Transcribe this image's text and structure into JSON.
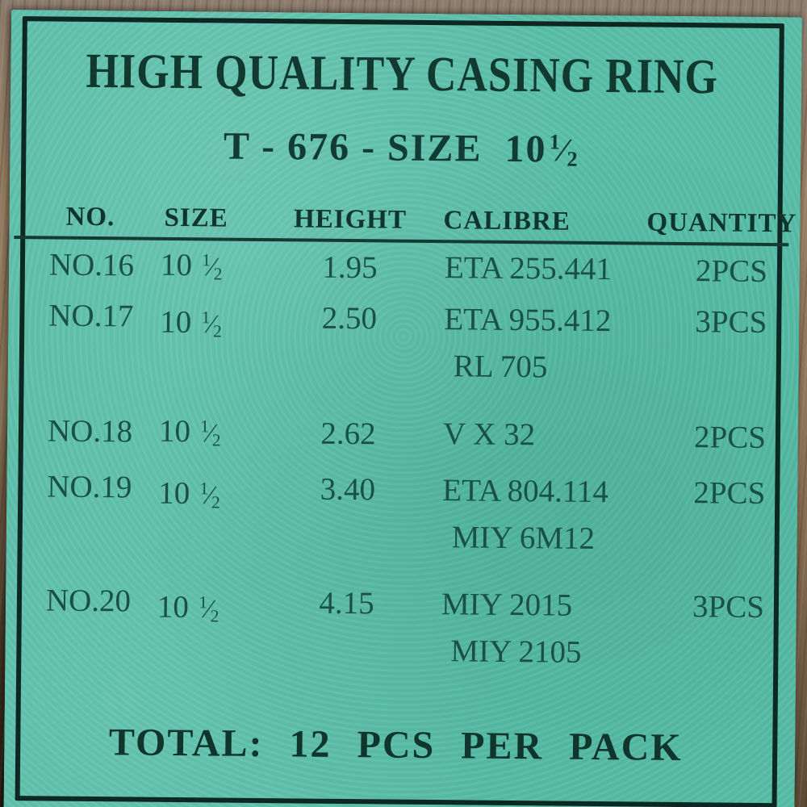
{
  "label": {
    "title_line1": "HIGH QUALITY CASING RING",
    "title_line2_prefix": "T - 676 - SIZE  10",
    "fraction": {
      "numerator": "1",
      "denominator": "2"
    },
    "total": "TOTAL: 12 PCS PER PACK"
  },
  "table": {
    "headers": {
      "no": "NO.",
      "size": "SIZE",
      "height": "HEIGHT",
      "calibre": "CALIBRE",
      "quantity": "QUANTITY"
    },
    "rows": [
      {
        "no": "NO.16",
        "size": "10 ",
        "height": "1.95",
        "calibre1": "ETA 255.441",
        "qty": "2PCS"
      },
      {
        "no": "NO.17",
        "size": "10 ",
        "height": "2.50",
        "calibre1": "ETA 955.412",
        "calibre2": "RL 705",
        "qty": "3PCS"
      },
      {
        "no": "NO.18",
        "size": "10 ",
        "height": "2.62",
        "calibre1": "V X 32",
        "qty": "2PCS"
      },
      {
        "no": "NO.19",
        "size": "10 ",
        "height": "3.40",
        "calibre1": "ETA 804.114",
        "calibre2": "MIY 6M12",
        "qty": "2PCS"
      },
      {
        "no": "NO.20",
        "size": "10 ",
        "height": "4.15",
        "calibre1": "MIY 2015",
        "calibre2": "MIY 2105",
        "qty": "3PCS"
      }
    ]
  },
  "colors": {
    "paper_green": "#59bfa9",
    "ink_dark": "#0f352d",
    "ink_row": "#1a5045",
    "frame": "#0d2822",
    "wood": "#8f795f"
  }
}
